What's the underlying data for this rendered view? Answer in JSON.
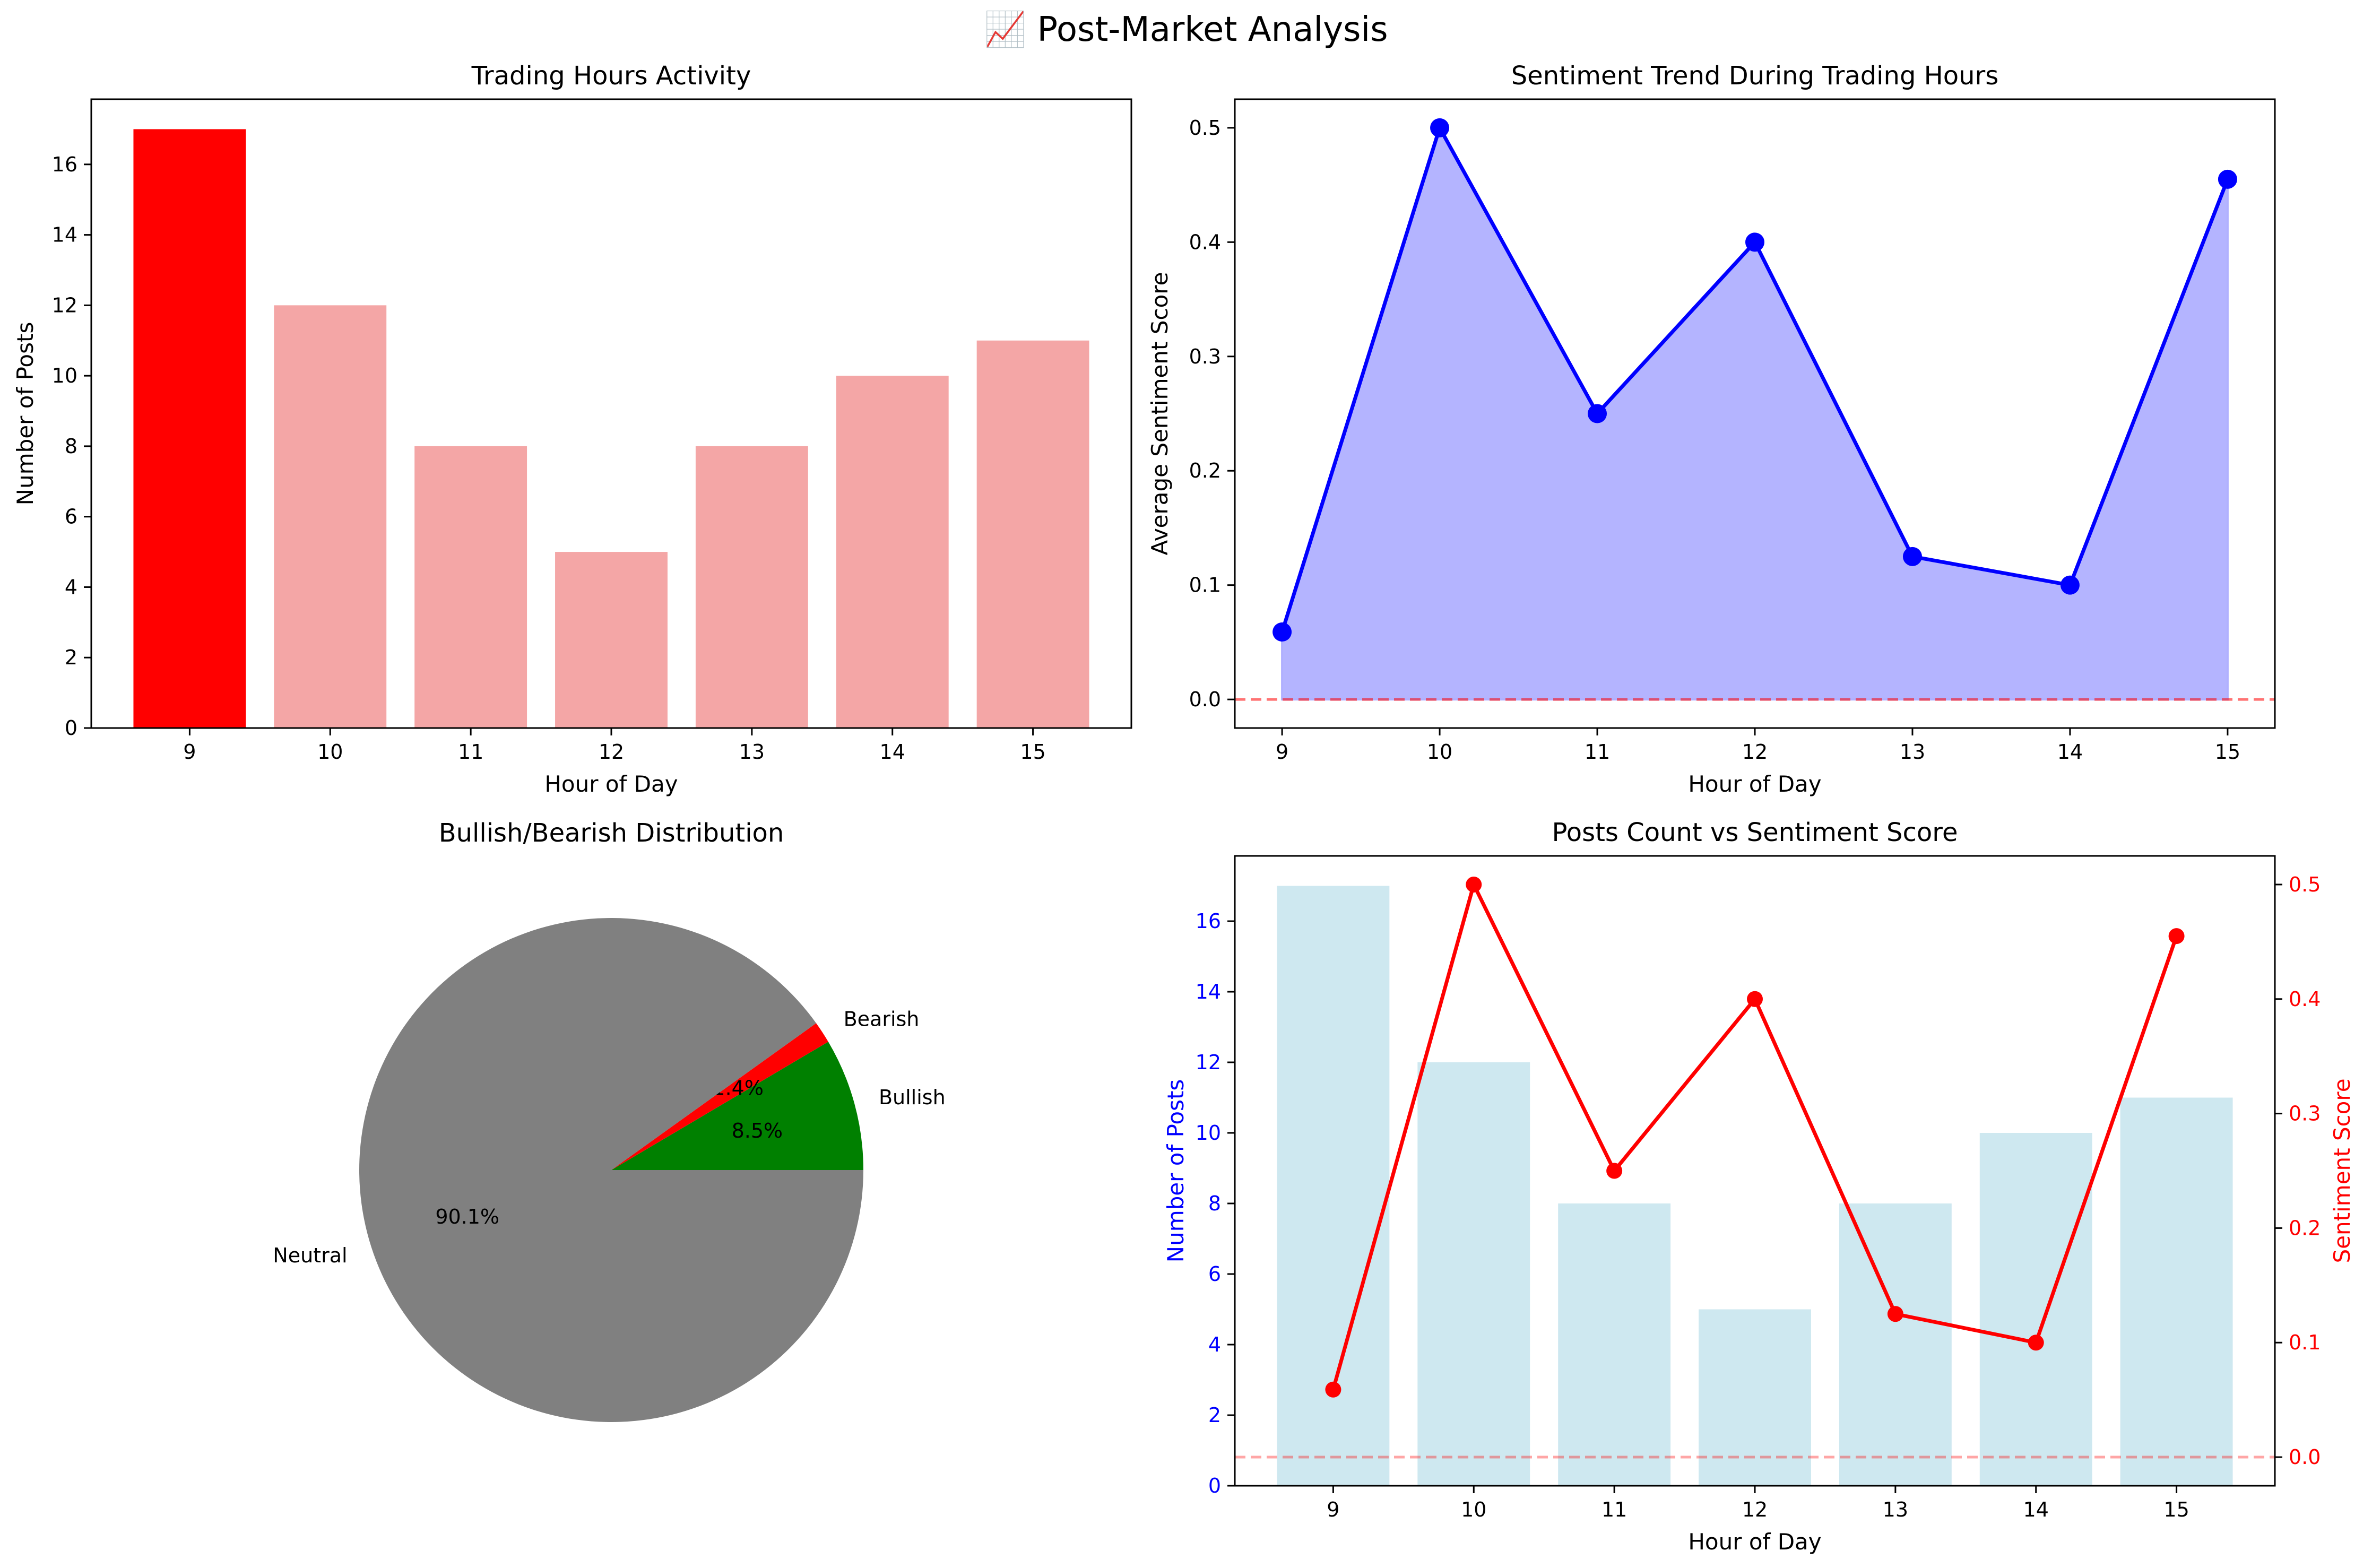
{
  "figure": {
    "title": "📈 Post-Market Analysis"
  },
  "chart_data": [
    {
      "id": "activity",
      "type": "bar",
      "title": "Trading Hours Activity",
      "xlabel": "Hour of Day",
      "ylabel": "Number of Posts",
      "categories": [
        "9",
        "10",
        "11",
        "12",
        "13",
        "14",
        "15"
      ],
      "values": [
        17,
        12,
        8,
        5,
        8,
        10,
        11
      ],
      "highlight_index": 0,
      "colors": {
        "highlight": "#ff0000",
        "normal": "#f08080"
      },
      "ylim": [
        0,
        17.85
      ],
      "yticks": [
        0,
        2,
        4,
        6,
        8,
        10,
        12,
        14,
        16
      ]
    },
    {
      "id": "sentiment",
      "type": "area",
      "title": "Sentiment Trend During Trading Hours",
      "xlabel": "Hour of Day",
      "ylabel": "Average Sentiment Score",
      "x": [
        9,
        10,
        11,
        12,
        13,
        14,
        15
      ],
      "values": [
        0.059,
        0.5,
        0.25,
        0.4,
        0.125,
        0.1,
        0.455
      ],
      "ylim": [
        -0.025,
        0.525
      ],
      "yticks": [
        0.0,
        0.1,
        0.2,
        0.3,
        0.4,
        0.5
      ],
      "colors": {
        "line": "#0000ff",
        "fill": "#b0b0ff",
        "baseline": "#ff0000"
      },
      "reference_line": 0
    },
    {
      "id": "distribution",
      "type": "pie",
      "title": "Bullish/Bearish Distribution",
      "slices": [
        {
          "label": "Bullish",
          "percent": 8.5,
          "pct_label": "8.5%",
          "color": "#008000"
        },
        {
          "label": "Bearish",
          "percent": 1.4,
          "pct_label": "1.4%",
          "color": "#ff0000"
        },
        {
          "label": "Neutral",
          "percent": 90.1,
          "pct_label": "90.1%",
          "color": "#808080"
        }
      ]
    },
    {
      "id": "combined",
      "type": "bar",
      "title": "Posts Count vs Sentiment Score",
      "xlabel": "Hour of Day",
      "ylabel": "Number of Posts",
      "y2label": "Sentiment Score",
      "categories": [
        "9",
        "10",
        "11",
        "12",
        "13",
        "14",
        "15"
      ],
      "values": [
        17,
        12,
        8,
        5,
        8,
        10,
        11
      ],
      "line_values": [
        0.059,
        0.5,
        0.25,
        0.4,
        0.125,
        0.1,
        0.455
      ],
      "ylim": [
        0,
        17.85
      ],
      "yticks": [
        0,
        2,
        4,
        6,
        8,
        10,
        12,
        14,
        16
      ],
      "y2lim": [
        -0.025,
        0.525
      ],
      "y2ticks": [
        0.0,
        0.1,
        0.2,
        0.3,
        0.4,
        0.5
      ],
      "colors": {
        "bar": "#add8e6",
        "line": "#ff0000",
        "left_axis": "#0000ff",
        "right_axis": "#ff0000"
      },
      "reference_line": 0
    }
  ]
}
